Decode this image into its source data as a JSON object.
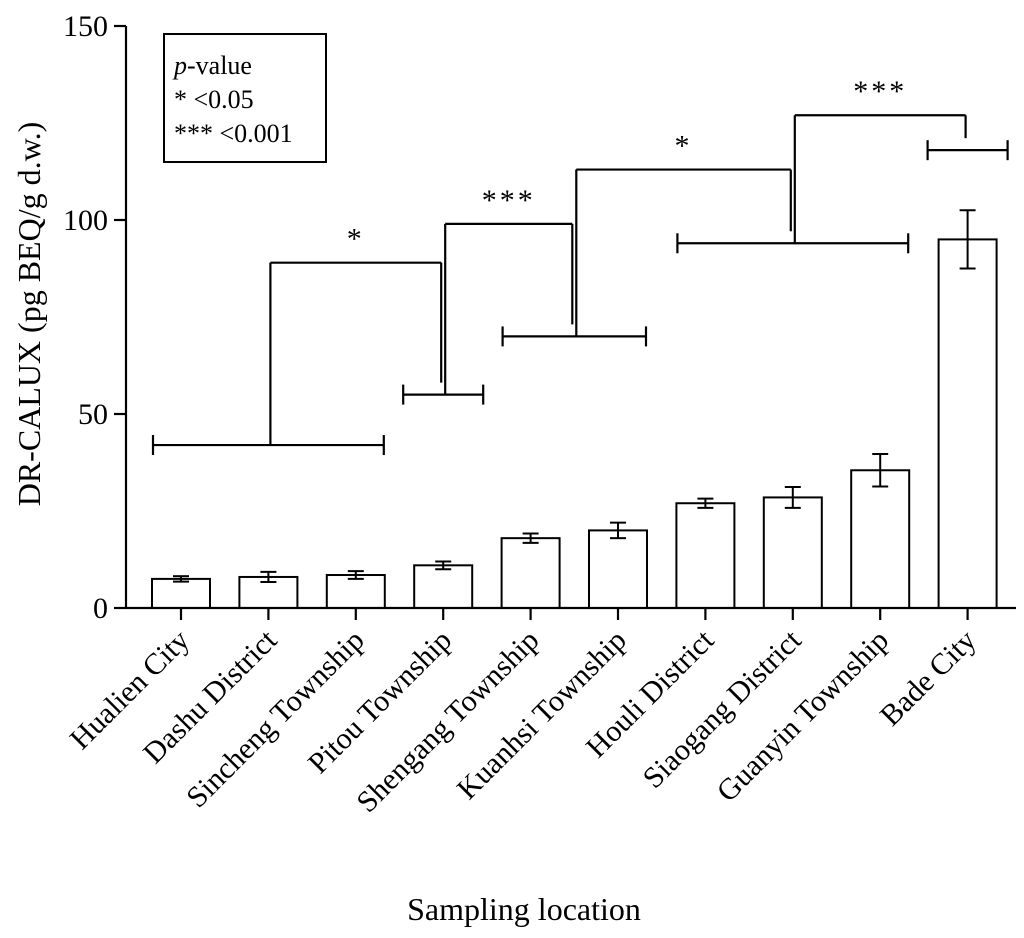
{
  "chart_data": {
    "type": "bar",
    "xlabel": "Sampling location",
    "ylabel": "DR-CALUX (pg BEQ/g d.w.)",
    "ylim": [
      0,
      150
    ],
    "yticks": [
      0,
      50,
      100,
      150
    ],
    "categories": [
      "Hualien City",
      "Dashu District",
      "Sincheng Township",
      "Pitou Township",
      "Shengang Township",
      "Kuanhsi Township",
      "Houli District",
      "Siaogang District",
      "Guanyin Township",
      "Bade City"
    ],
    "values": [
      7.5,
      8,
      8.5,
      11,
      18,
      20,
      27,
      28.5,
      35.5,
      95
    ],
    "errors": [
      0.7,
      1.3,
      1.0,
      1.0,
      1.2,
      2.0,
      1.2,
      2.7,
      4.2,
      7.5
    ],
    "legend": {
      "title_italic": "p",
      "title_rest": "-value",
      "entries": [
        "* <0.05",
        "*** <0.001"
      ],
      "position": "top-left"
    },
    "comparisons": [
      {
        "group1": [
          0,
          2
        ],
        "y1": 42,
        "group2": [
          3,
          3
        ],
        "y2": 55,
        "top": 89,
        "label": "*"
      },
      {
        "group1": [
          3,
          3
        ],
        "y1": 55,
        "group2": [
          4,
          5
        ],
        "y2": 70,
        "top": 99,
        "label": "***"
      },
      {
        "group1": [
          4,
          5
        ],
        "y1": 70,
        "group2": [
          6,
          8
        ],
        "y2": 94,
        "top": 113,
        "label": "*"
      },
      {
        "group1": [
          6,
          8
        ],
        "y1": 94,
        "group2": [
          9,
          9
        ],
        "y2": 118,
        "top": 127,
        "label": "***"
      }
    ]
  }
}
